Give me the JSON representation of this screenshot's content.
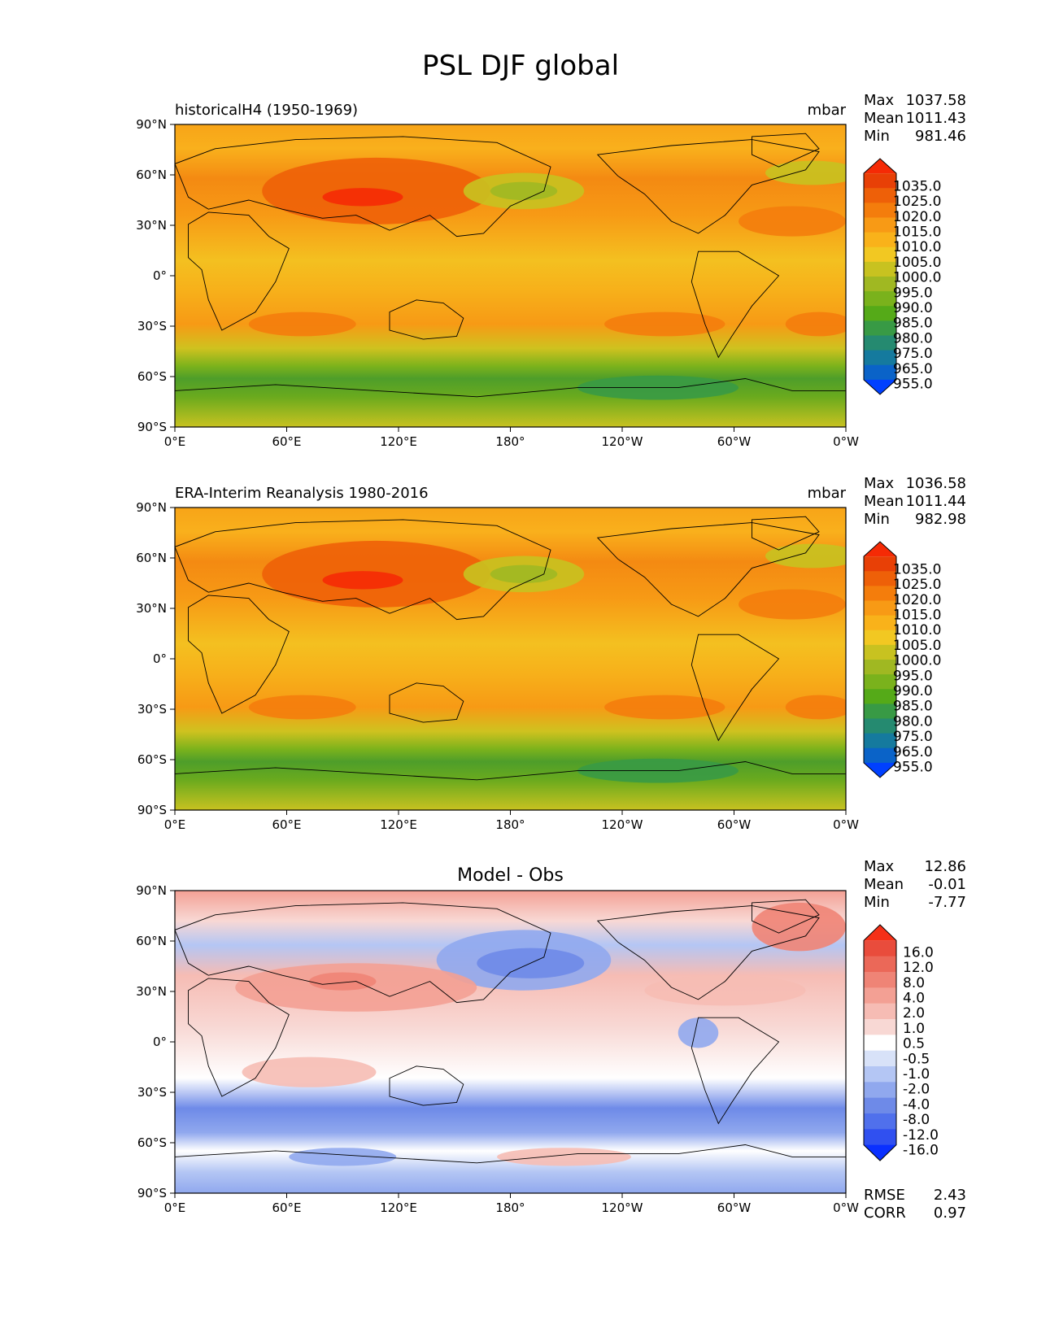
{
  "figure": {
    "title": "PSL DJF global"
  },
  "colors": {
    "abs_levels": [
      "#0040ff",
      "#0a63c8",
      "#157a9e",
      "#258a70",
      "#389a45",
      "#55aa18",
      "#7ab21c",
      "#a0b822",
      "#c8c220",
      "#f2c822",
      "#f9b21a",
      "#f89a15",
      "#f47d0c",
      "#ee6008",
      "#e84006",
      "#f52a05"
    ],
    "diff_levels": [
      "#0a30ff",
      "#3050f0",
      "#5070ec",
      "#6e8ae8",
      "#90a8ee",
      "#b4c6f4",
      "#d8e2f8",
      "#ffffff",
      "#f8d8d4",
      "#f6bcb4",
      "#f3a094",
      "#ef8476",
      "#eb6858",
      "#e94c3c",
      "#f53018"
    ]
  },
  "panels": [
    {
      "id": "model",
      "left_title": "historicalH4 (1950-1969)",
      "center_title": "",
      "units": "mbar",
      "stats": [
        {
          "label": "Max",
          "value": "1037.58"
        },
        {
          "label": "Mean",
          "value": "1011.43"
        },
        {
          "label": "Min",
          "value": "981.46"
        }
      ],
      "colorbar_ticks": [
        "1035.0",
        "1025.0",
        "1020.0",
        "1015.0",
        "1010.0",
        "1005.0",
        "1000.0",
        "995.0",
        "990.0",
        "985.0",
        "980.0",
        "975.0",
        "965.0",
        "955.0"
      ],
      "lat_ticks": [
        "90°N",
        "60°N",
        "30°N",
        "0°",
        "30°S",
        "60°S",
        "90°S"
      ],
      "lon_ticks": [
        "0°E",
        "60°E",
        "120°E",
        "180°",
        "120°W",
        "60°W",
        "0°W"
      ]
    },
    {
      "id": "obs",
      "left_title": "ERA-Interim Reanalysis 1980-2016",
      "center_title": "",
      "units": "mbar",
      "stats": [
        {
          "label": "Max",
          "value": "1036.58"
        },
        {
          "label": "Mean",
          "value": "1011.44"
        },
        {
          "label": "Min",
          "value": "982.98"
        }
      ],
      "colorbar_ticks": [
        "1035.0",
        "1025.0",
        "1020.0",
        "1015.0",
        "1010.0",
        "1005.0",
        "1000.0",
        "995.0",
        "990.0",
        "985.0",
        "980.0",
        "975.0",
        "965.0",
        "955.0"
      ],
      "lat_ticks": [
        "90°N",
        "60°N",
        "30°N",
        "0°",
        "30°S",
        "60°S",
        "90°S"
      ],
      "lon_ticks": [
        "0°E",
        "60°E",
        "120°E",
        "180°",
        "120°W",
        "60°W",
        "0°W"
      ]
    },
    {
      "id": "diff",
      "left_title": "",
      "center_title": "Model - Obs",
      "units": "",
      "stats": [
        {
          "label": "Max",
          "value": "12.86"
        },
        {
          "label": "Mean",
          "value": "-0.01"
        },
        {
          "label": "Min",
          "value": "-7.77"
        }
      ],
      "colorbar_ticks": [
        "16.0",
        "12.0",
        "8.0",
        "4.0",
        "2.0",
        "1.0",
        "0.5",
        "-0.5",
        "-1.0",
        "-2.0",
        "-4.0",
        "-8.0",
        "-12.0",
        "-16.0"
      ],
      "lat_ticks": [
        "90°N",
        "60°N",
        "30°N",
        "0°",
        "30°S",
        "60°S",
        "90°S"
      ],
      "lon_ticks": [
        "0°E",
        "60°E",
        "120°E",
        "180°",
        "120°W",
        "60°W",
        "0°W"
      ],
      "metrics": [
        {
          "label": "RMSE",
          "value": "2.43"
        },
        {
          "label": "CORR",
          "value": "0.97"
        }
      ]
    }
  ]
}
